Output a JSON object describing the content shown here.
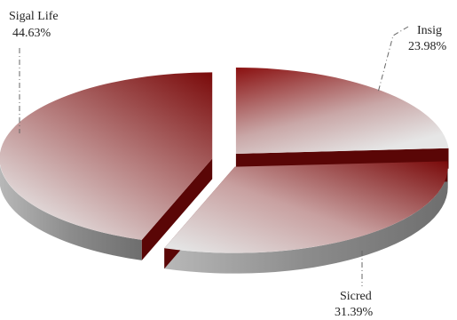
{
  "chart_data": {
    "type": "pie",
    "title": "",
    "slices": [
      {
        "label": "Sigal Life",
        "value": 44.63,
        "value_label": "44.63%"
      },
      {
        "label": "Insig",
        "value": 23.98,
        "value_label": "23.98%"
      },
      {
        "label": "Sicred",
        "value": 31.39,
        "value_label": "31.39%"
      }
    ],
    "style": "3D exploded pie",
    "colors": {
      "dark": "#7a0a0a",
      "light": "#e6e6e6",
      "side_dark": "#5a0606",
      "side_light": "#9a9a9a"
    },
    "legend": "none"
  }
}
